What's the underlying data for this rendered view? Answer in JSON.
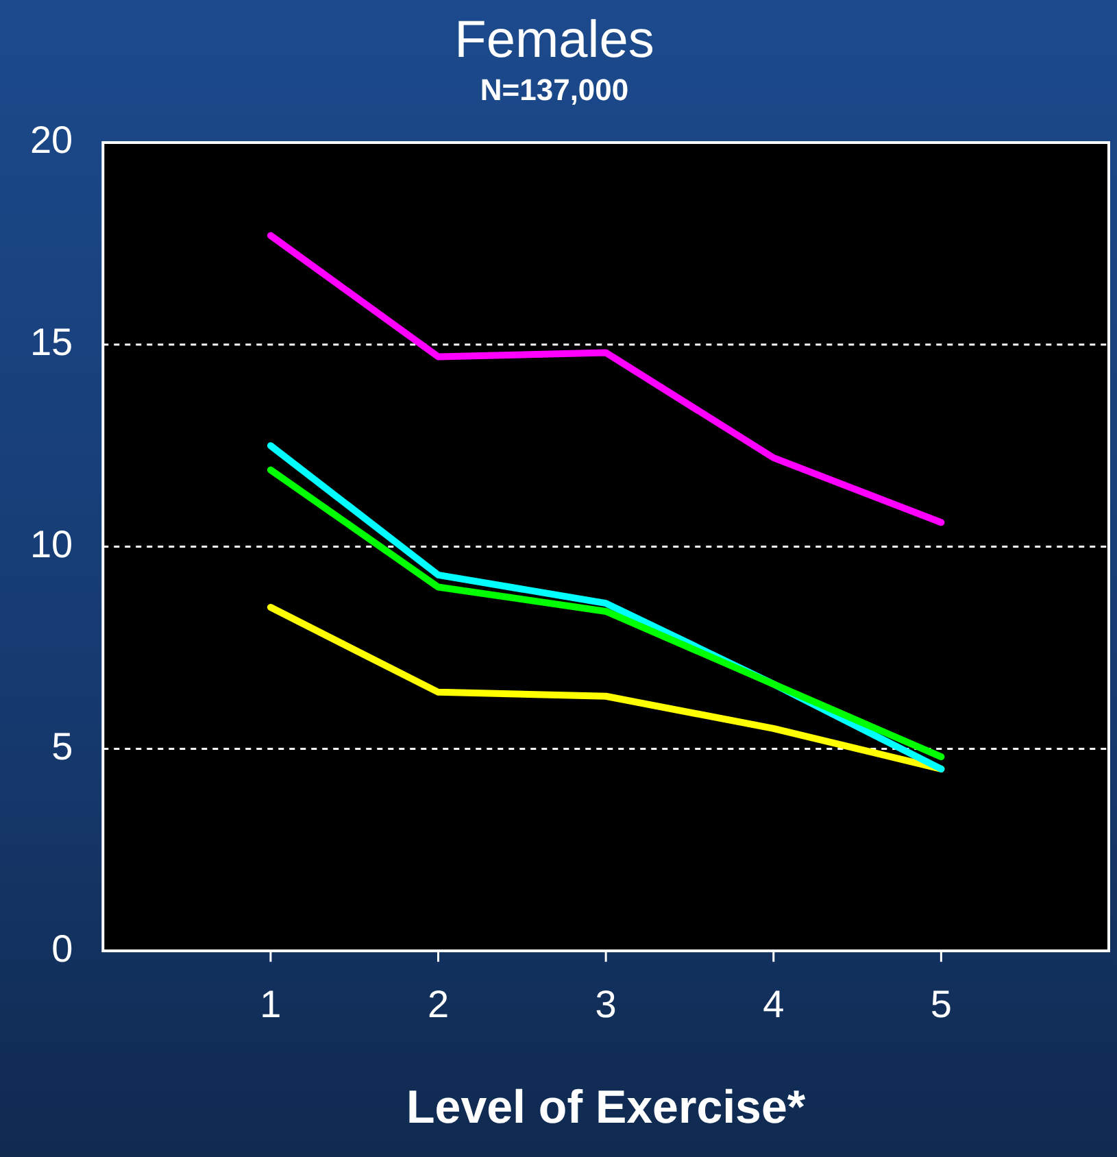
{
  "chart_data": {
    "type": "line",
    "title": "Females",
    "subtitle": "N=137,000",
    "xlabel": "Level of Exercise*",
    "x": [
      1,
      2,
      3,
      4,
      5
    ],
    "series": [
      {
        "color": "#ff00ff",
        "values": [
          17.7,
          14.7,
          14.8,
          12.2,
          10.6
        ]
      },
      {
        "color": "#00ff00",
        "values": [
          11.9,
          9.0,
          8.4,
          6.6,
          4.8
        ]
      },
      {
        "color": "#00ffff",
        "values": [
          12.5,
          9.3,
          8.6,
          6.6,
          4.5
        ]
      },
      {
        "color": "#ffff00",
        "values": [
          8.5,
          6.4,
          6.3,
          5.5,
          4.5
        ]
      }
    ],
    "xlim": [
      0,
      6
    ],
    "xticks": [
      1,
      2,
      3,
      4,
      5
    ],
    "ylim": [
      0,
      20
    ],
    "yticks": [
      0,
      5,
      10,
      15,
      20
    ],
    "grid": "y",
    "legend": false,
    "marker": "none",
    "line_style": "solid"
  }
}
